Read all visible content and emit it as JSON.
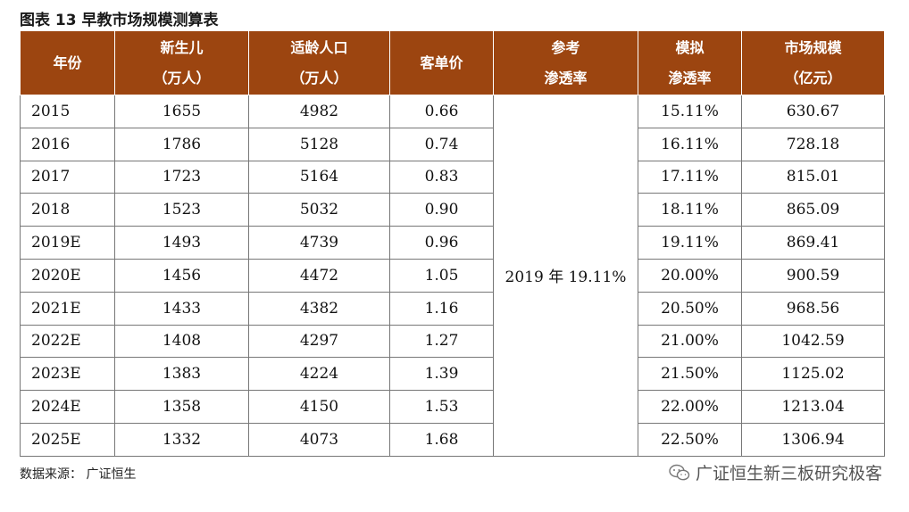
{
  "title": "图表 13 早教市场规模测算表",
  "table": {
    "headers": [
      {
        "line1": "年份",
        "line2": ""
      },
      {
        "line1": "新生儿",
        "line2": "（万人）"
      },
      {
        "line1": "适龄人口",
        "line2": "（万人）"
      },
      {
        "line1": "客单价",
        "line2": ""
      },
      {
        "line1": "参考",
        "line2": "渗透率"
      },
      {
        "line1": "模拟",
        "line2": "渗透率"
      },
      {
        "line1": "市场规模",
        "line2": "（亿元）"
      }
    ],
    "reference_rate": "2019 年 19.11%",
    "rows": [
      {
        "year": "2015",
        "newborn": "1655",
        "population": "4982",
        "price": "0.66",
        "sim_rate": "15.11%",
        "market": "630.67"
      },
      {
        "year": "2016",
        "newborn": "1786",
        "population": "5128",
        "price": "0.74",
        "sim_rate": "16.11%",
        "market": "728.18"
      },
      {
        "year": "2017",
        "newborn": "1723",
        "population": "5164",
        "price": "0.83",
        "sim_rate": "17.11%",
        "market": "815.01"
      },
      {
        "year": "2018",
        "newborn": "1523",
        "population": "5032",
        "price": "0.90",
        "sim_rate": "18.11%",
        "market": "865.09"
      },
      {
        "year": "2019E",
        "newborn": "1493",
        "population": "4739",
        "price": "0.96",
        "sim_rate": "19.11%",
        "market": "869.41"
      },
      {
        "year": "2020E",
        "newborn": "1456",
        "population": "4472",
        "price": "1.05",
        "sim_rate": "20.00%",
        "market": "900.59"
      },
      {
        "year": "2021E",
        "newborn": "1433",
        "population": "4382",
        "price": "1.16",
        "sim_rate": "20.50%",
        "market": "968.56"
      },
      {
        "year": "2022E",
        "newborn": "1408",
        "population": "4297",
        "price": "1.27",
        "sim_rate": "21.00%",
        "market": "1042.59"
      },
      {
        "year": "2023E",
        "newborn": "1383",
        "population": "4224",
        "price": "1.39",
        "sim_rate": "21.50%",
        "market": "1125.02"
      },
      {
        "year": "2024E",
        "newborn": "1358",
        "population": "4150",
        "price": "1.53",
        "sim_rate": "22.00%",
        "market": "1213.04"
      },
      {
        "year": "2025E",
        "newborn": "1332",
        "population": "4073",
        "price": "1.68",
        "sim_rate": "22.50%",
        "market": "1306.94"
      }
    ]
  },
  "source": "数据来源： 广证恒生",
  "watermark": "广证恒生新三板研究极客",
  "colors": {
    "header_bg": "#9c4510",
    "header_text": "#ffffff"
  }
}
